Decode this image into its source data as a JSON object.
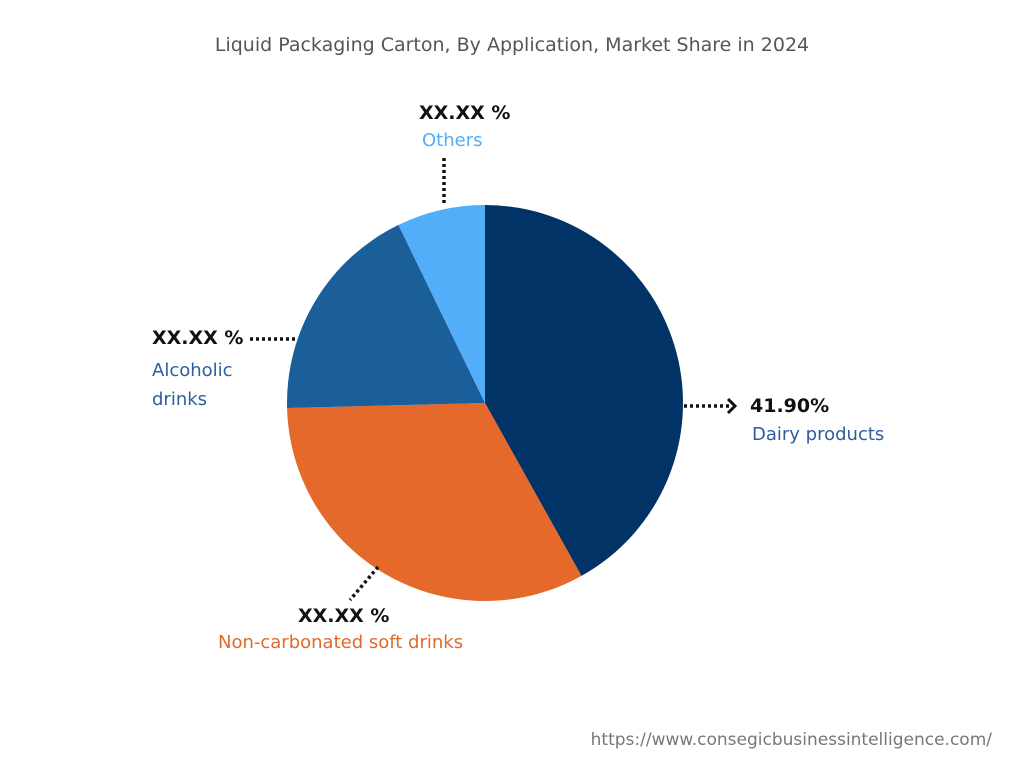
{
  "chart_data": {
    "type": "pie",
    "title": "Liquid Packaging Carton, By Application, Market Share in 2024",
    "start": "top",
    "direction": "clockwise",
    "slices": [
      {
        "name": "Dairy products",
        "value": 41.9,
        "label": "41.90%",
        "color": "#023366"
      },
      {
        "name": "Non-carbonated soft drinks",
        "value": 32.7,
        "label": "XX.XX %",
        "color": "#E4692A"
      },
      {
        "name": "Alcoholic drinks",
        "value": 18.2,
        "label": "XX.XX %",
        "color": "#1A5F9A"
      },
      {
        "name": "Others",
        "value": 7.2,
        "label": "XX.XX %",
        "color": "#52AEF9"
      }
    ],
    "label_colors": {
      "Dairy products": "#2E5DA0",
      "Non-carbonated soft drinks": "#E06A2A",
      "Alcoholic drinks": "#2E5DA0",
      "Others": "#52AEF9"
    }
  },
  "labels": {
    "dairy_line1": "Dairy products",
    "noncarb_line1": "Non-carbonated soft drinks",
    "alcoholic_line1": "Alcoholic",
    "alcoholic_line2": "drinks",
    "others_line1": "Others"
  },
  "watermark": "https://www.consegicbusinessintelligence.com/"
}
